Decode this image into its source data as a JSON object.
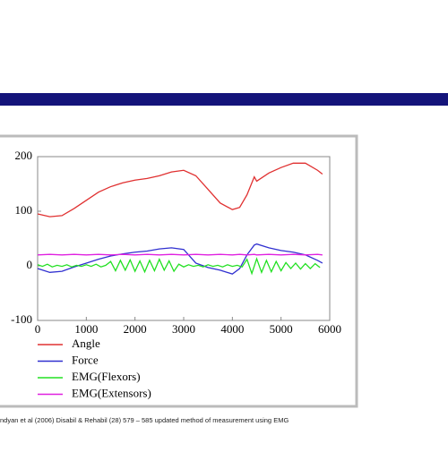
{
  "chart_data": {
    "type": "line",
    "x": [
      0,
      250,
      500,
      750,
      1000,
      1250,
      1500,
      1750,
      2000,
      2250,
      2500,
      2750,
      3000,
      3250,
      3500,
      3750,
      4000,
      4150,
      4300,
      4450,
      4500,
      4750,
      5000,
      5250,
      5500,
      5750,
      5850
    ],
    "series": [
      {
        "name": "Angle",
        "color": "#e03030",
        "values": [
          95,
          90,
          92,
          105,
          120,
          135,
          145,
          152,
          157,
          160,
          165,
          172,
          175,
          165,
          140,
          115,
          103,
          107,
          130,
          163,
          155,
          170,
          180,
          188,
          188,
          175,
          168
        ]
      },
      {
        "name": "Force",
        "color": "#3030d0",
        "values": [
          -5,
          -12,
          -10,
          -2,
          5,
          12,
          18,
          22,
          25,
          27,
          31,
          33,
          30,
          5,
          -3,
          -8,
          -15,
          -5,
          20,
          38,
          40,
          33,
          28,
          25,
          20,
          10,
          5
        ]
      },
      {
        "name": "EMG(Flexors)",
        "color": "#22e022",
        "x": [
          0,
          100,
          200,
          300,
          400,
          500,
          600,
          700,
          800,
          900,
          1000,
          1100,
          1200,
          1300,
          1400,
          1500,
          1600,
          1700,
          1800,
          1900,
          2000,
          2100,
          2200,
          2300,
          2400,
          2500,
          2600,
          2700,
          2800,
          2900,
          3000,
          3100,
          3200,
          3300,
          3400,
          3500,
          3600,
          3700,
          3800,
          3900,
          4000,
          4100,
          4200,
          4300,
          4400,
          4500,
          4600,
          4700,
          4800,
          4900,
          5000,
          5100,
          5200,
          5300,
          5400,
          5500,
          5600,
          5700,
          5800
        ],
        "values": [
          2,
          -1,
          3,
          -2,
          1,
          -1,
          2,
          -2,
          1,
          -1,
          2,
          -1,
          3,
          -2,
          1,
          8,
          -9,
          10,
          -8,
          11,
          -10,
          9,
          -11,
          10,
          -9,
          12,
          -8,
          9,
          -10,
          3,
          -2,
          2,
          -1,
          1,
          -2,
          2,
          -1,
          1,
          -2,
          2,
          -1,
          1,
          -2,
          12,
          -14,
          13,
          -12,
          10,
          -11,
          8,
          -9,
          6,
          -5,
          5,
          -6,
          4,
          -5,
          4,
          -3
        ]
      },
      {
        "name": "EMG(Extensors)",
        "color": "#e020e0",
        "values": [
          20,
          21,
          20,
          21,
          20,
          21,
          20,
          21,
          20,
          21,
          20,
          21,
          20,
          21,
          20,
          21,
          20,
          21,
          20,
          21,
          20,
          21,
          20,
          21,
          20,
          21,
          20
        ]
      }
    ],
    "xlim": [
      0,
      6000
    ],
    "xticks": [
      0,
      1000,
      2000,
      3000,
      4000,
      5000,
      6000
    ],
    "ylim": [
      -100,
      200
    ],
    "yticks": [
      -100,
      0,
      100,
      200
    ]
  },
  "caption": "ndyan et al (2006) Disabil & Rehabil (28) 579 – 585 updated method  of measurement  using EMG"
}
